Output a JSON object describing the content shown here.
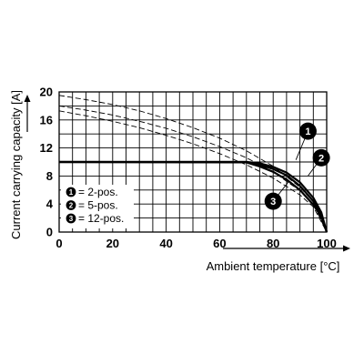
{
  "chart_data": {
    "type": "line",
    "xlabel": "Ambient temperature [°C]",
    "ylabel": "Current carrying capacity [A]",
    "xlim": [
      0,
      100
    ],
    "ylim": [
      0,
      20
    ],
    "x_ticks": [
      0,
      20,
      40,
      60,
      80,
      100
    ],
    "y_ticks": [
      0,
      4,
      8,
      12,
      16,
      20
    ],
    "x_grid_step": 5,
    "y_grid_step": 2,
    "grid": true,
    "legend_position": "lower-left",
    "legend": [
      {
        "marker": "1",
        "label": "= 2-pos."
      },
      {
        "marker": "2",
        "label": "= 5-pos."
      },
      {
        "marker": "3",
        "label": "= 12-pos."
      }
    ],
    "series": [
      {
        "marker": "1",
        "style": "solid",
        "x": [
          0,
          70,
          75,
          80,
          85,
          90,
          95,
          98,
          100
        ],
        "y": [
          10,
          10,
          9.8,
          9.3,
          8.5,
          7.1,
          4.9,
          2.8,
          0
        ]
      },
      {
        "marker": "2",
        "style": "solid",
        "x": [
          0,
          70,
          75,
          80,
          85,
          90,
          95,
          98,
          100
        ],
        "y": [
          10,
          10,
          9.6,
          9.0,
          8.1,
          6.6,
          4.4,
          2.5,
          0
        ]
      },
      {
        "marker": "3",
        "style": "solid",
        "x": [
          0,
          70,
          75,
          80,
          85,
          90,
          95,
          98,
          100
        ],
        "y": [
          10,
          9.95,
          9.35,
          8.6,
          7.5,
          6.0,
          3.9,
          2.2,
          0
        ]
      },
      {
        "marker": "1",
        "style": "dashed",
        "x": [
          0,
          10,
          20,
          30,
          40,
          50,
          60,
          70,
          80,
          90,
          95,
          100
        ],
        "y": [
          19.5,
          18.9,
          18.2,
          17.3,
          16.2,
          14.9,
          13.4,
          11.6,
          9.4,
          6.4,
          4.3,
          0
        ]
      },
      {
        "marker": "2",
        "style": "dashed",
        "x": [
          0,
          10,
          20,
          30,
          40,
          50,
          60,
          70,
          80,
          90,
          95,
          100
        ],
        "y": [
          18.0,
          17.4,
          16.7,
          15.8,
          14.8,
          13.6,
          12.2,
          10.6,
          8.6,
          5.9,
          4.0,
          0
        ]
      },
      {
        "marker": "3",
        "style": "dashed",
        "x": [
          0,
          10,
          20,
          30,
          40,
          50,
          60,
          70,
          80,
          90,
          95,
          100
        ],
        "y": [
          17.3,
          16.6,
          15.8,
          14.9,
          13.8,
          12.6,
          11.2,
          9.6,
          7.7,
          5.3,
          3.6,
          0
        ]
      }
    ],
    "callouts": [
      {
        "marker": "1",
        "x": 93,
        "y": 14.4,
        "target_x": 88.5,
        "target_y": 10.3
      },
      {
        "marker": "2",
        "x": 98,
        "y": 10.6,
        "target_x": 93,
        "target_y": 8.0
      },
      {
        "marker": "3",
        "x": 80,
        "y": 4.4,
        "target_x": 86,
        "target_y": 7.3
      }
    ]
  }
}
